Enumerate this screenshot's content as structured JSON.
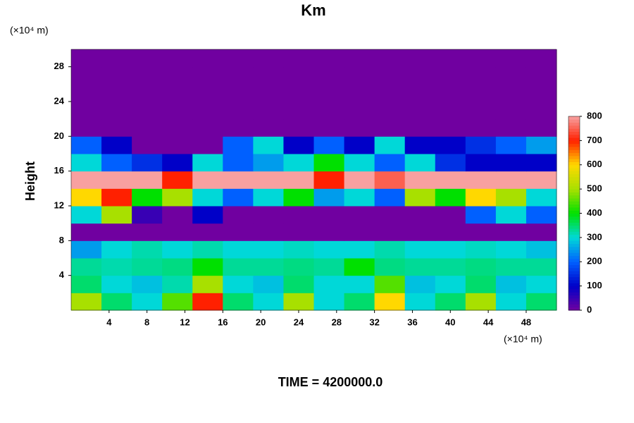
{
  "chart_data": {
    "type": "heatmap",
    "title": "Km",
    "ylabel": "Height",
    "xunit": "(×10⁴ m)",
    "yunit": "(×10⁴ m)",
    "footer": "TIME = 4200000.0",
    "x": [
      1.6,
      4.8,
      8,
      11.2,
      14.4,
      17.6,
      20.8,
      24,
      27.2,
      30.4,
      33.6,
      36.8,
      40,
      43.2,
      46.4,
      49.6
    ],
    "y": [
      1,
      3,
      5,
      7,
      9,
      11,
      13,
      15,
      17,
      19,
      21,
      23,
      25,
      27,
      29
    ],
    "z": [
      [
        500,
        350,
        300,
        450,
        700,
        350,
        300,
        500,
        300,
        350,
        600,
        300,
        350,
        500,
        300,
        350
      ],
      [
        350,
        300,
        280,
        320,
        500,
        300,
        280,
        350,
        300,
        300,
        450,
        280,
        300,
        350,
        280,
        300
      ],
      [
        330,
        320,
        330,
        340,
        400,
        330,
        330,
        340,
        330,
        400,
        340,
        330,
        330,
        340,
        330,
        330
      ],
      [
        250,
        300,
        320,
        300,
        320,
        300,
        300,
        310,
        300,
        300,
        320,
        300,
        300,
        310,
        300,
        280
      ],
      [
        0,
        0,
        0,
        0,
        0,
        0,
        0,
        0,
        0,
        0,
        0,
        0,
        0,
        0,
        0,
        0
      ],
      [
        300,
        500,
        50,
        0,
        100,
        0,
        0,
        0,
        0,
        0,
        0,
        0,
        0,
        200,
        300,
        200
      ],
      [
        600,
        700,
        400,
        500,
        300,
        200,
        300,
        400,
        250,
        300,
        200,
        500,
        400,
        600,
        500,
        300
      ],
      [
        800,
        800,
        800,
        700,
        800,
        800,
        800,
        800,
        700,
        800,
        750,
        800,
        800,
        800,
        800,
        800
      ],
      [
        300,
        200,
        150,
        100,
        300,
        200,
        250,
        300,
        400,
        300,
        200,
        300,
        150,
        100,
        100,
        100
      ],
      [
        200,
        100,
        0,
        0,
        0,
        200,
        300,
        100,
        200,
        100,
        300,
        100,
        100,
        150,
        200,
        250
      ],
      [
        0,
        0,
        0,
        0,
        0,
        0,
        0,
        0,
        0,
        0,
        0,
        0,
        0,
        0,
        0,
        0
      ],
      [
        0,
        0,
        0,
        0,
        0,
        0,
        0,
        0,
        0,
        0,
        0,
        0,
        0,
        0,
        0,
        0
      ],
      [
        0,
        0,
        0,
        0,
        0,
        0,
        0,
        0,
        0,
        0,
        0,
        0,
        0,
        0,
        0,
        0
      ],
      [
        0,
        0,
        0,
        0,
        0,
        0,
        0,
        0,
        0,
        0,
        0,
        0,
        0,
        0,
        0,
        0
      ],
      [
        0,
        0,
        0,
        0,
        0,
        0,
        0,
        0,
        0,
        0,
        0,
        0,
        0,
        0,
        0,
        0
      ]
    ],
    "xlim": [
      0,
      51.2
    ],
    "ylim": [
      0,
      30
    ],
    "xticks": [
      4,
      8,
      12,
      16,
      20,
      24,
      28,
      32,
      36,
      40,
      44,
      48
    ],
    "yticks": [
      4,
      8,
      12,
      16,
      20,
      24,
      28
    ],
    "clim": [
      0,
      800
    ],
    "cticks": [
      0,
      100,
      200,
      300,
      400,
      500,
      600,
      700,
      800
    ],
    "colormap": [
      "#7000a0",
      "#0000c8",
      "#0060ff",
      "#00d8d8",
      "#00e000",
      "#a8e000",
      "#ffd800",
      "#ff2000",
      "#f8a0a0"
    ]
  }
}
